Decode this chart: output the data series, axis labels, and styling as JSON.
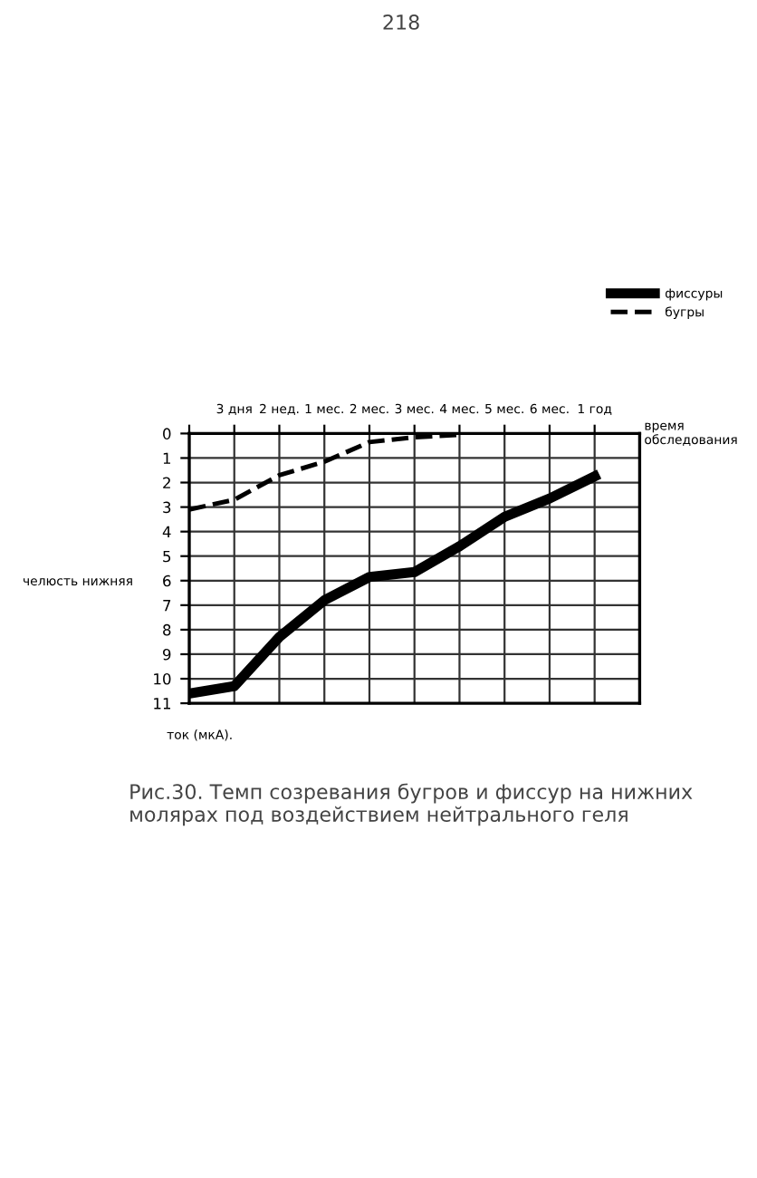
{
  "chart_data": {
    "type": "line",
    "xlabel": "время обследования",
    "ylabel": "челюсть нижняя",
    "categories": [
      null,
      "3 дня",
      "2 нед.",
      "1 мес.",
      "2 мес.",
      "3 мес.",
      "4 мес.",
      "5 мес.",
      "6 мес.",
      "1 год"
    ],
    "series": [
      {
        "name": "фиссуры",
        "color": "#000000",
        "line_style": "solid",
        "values": [
          10.6,
          10.3,
          8.3,
          6.8,
          5.85,
          5.65,
          4.6,
          3.4,
          2.65,
          1.75
        ]
      },
      {
        "name": "бугры",
        "color": "#000000",
        "line_style": "dashed",
        "values": [
          3.1,
          2.7,
          1.7,
          1.15,
          0.35,
          0.15,
          0.05,
          null,
          null,
          null
        ]
      }
    ],
    "ylim": [
      11,
      0
    ],
    "yticks": [
      0,
      1,
      2,
      3,
      4,
      5,
      6,
      7,
      8,
      9,
      10,
      11
    ],
    "grid": true,
    "legend": "top right",
    "marker": "none",
    "annotations": [
      "218",
      "ток (мкА).",
      "Рис.30. Темп созревания бугров и фиссур на нижних молярах под воздействием нейтрального геля"
    ]
  }
}
